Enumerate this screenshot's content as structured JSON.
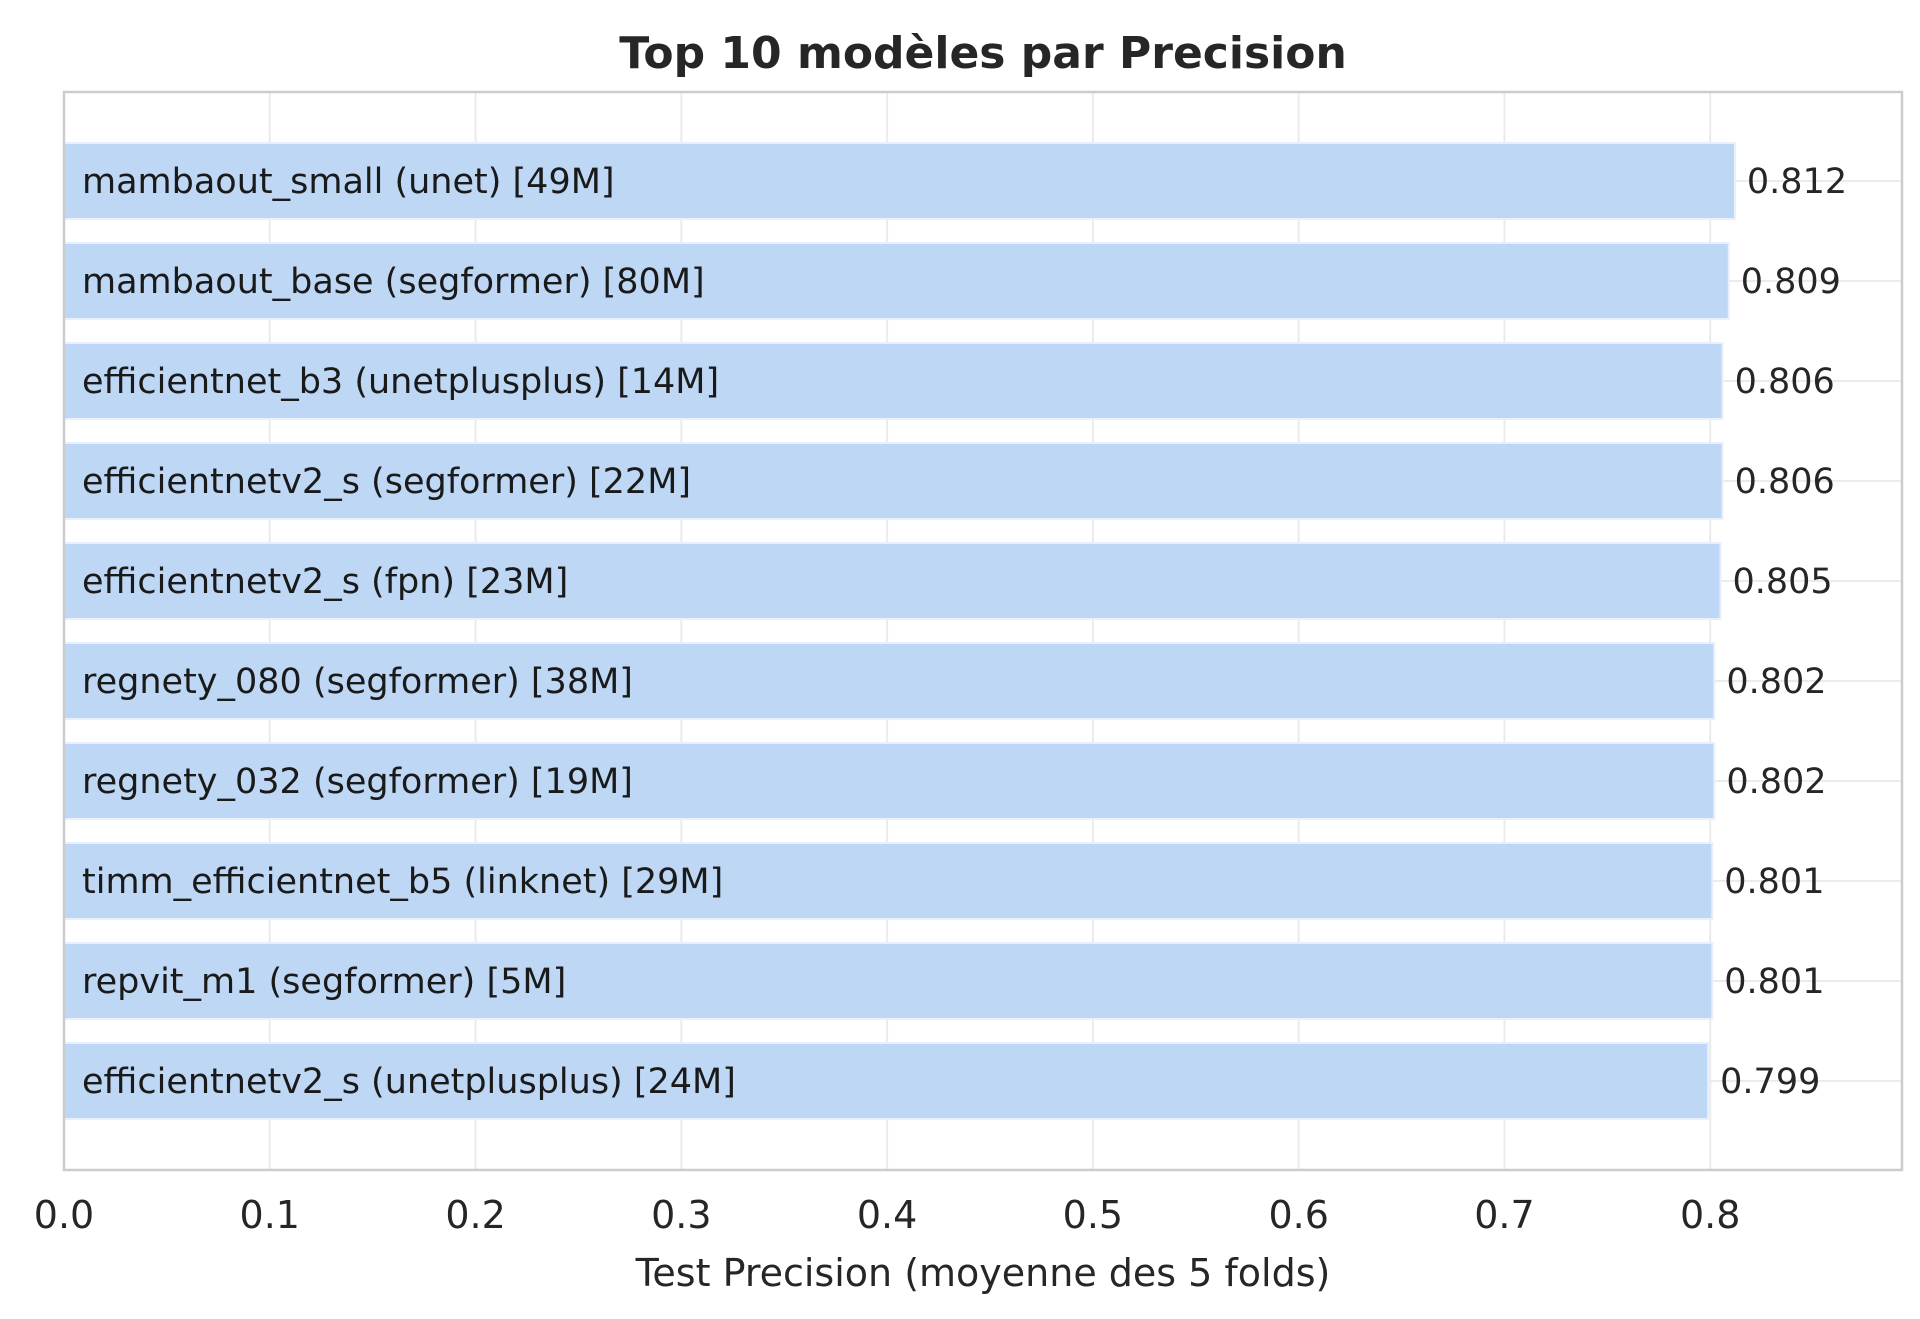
{
  "chart_data": {
    "type": "bar",
    "orientation": "horizontal",
    "title": "Top 10 modèles par Precision",
    "xlabel": "Test Precision (moyenne des 5 folds)",
    "ylabel": "",
    "xlim": [
      0.0,
      0.8932
    ],
    "xticks": [
      "0.0",
      "0.1",
      "0.2",
      "0.3",
      "0.4",
      "0.5",
      "0.6",
      "0.7",
      "0.8"
    ],
    "grid": true,
    "bar_color": "#bdd7f5",
    "categories": [
      "mambaout_small (unet) [49M]",
      "mambaout_base (segformer) [80M]",
      "efficientnet_b3 (unetplusplus) [14M]",
      "efficientnetv2_s (segformer) [22M]",
      "efficientnetv2_s (fpn) [23M]",
      "regnety_080 (segformer) [38M]",
      "regnety_032 (segformer) [19M]",
      "timm_efficientnet_b5 (linknet) [29M]",
      "repvit_m1 (segformer) [5M]",
      "efficientnetv2_s (unetplusplus) [24M]"
    ],
    "values": [
      0.812,
      0.809,
      0.806,
      0.806,
      0.805,
      0.802,
      0.802,
      0.801,
      0.801,
      0.799
    ],
    "value_labels": [
      "0.812",
      "0.809",
      "0.806",
      "0.806",
      "0.805",
      "0.802",
      "0.802",
      "0.801",
      "0.801",
      "0.799"
    ]
  }
}
